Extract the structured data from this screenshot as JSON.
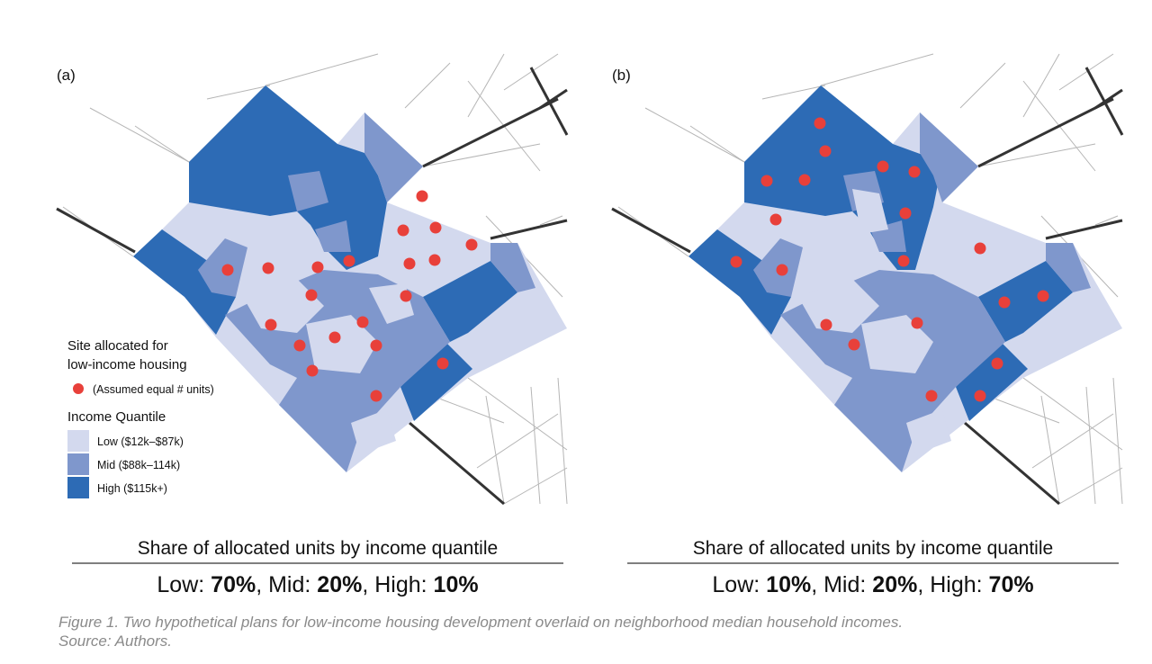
{
  "colors": {
    "low": "#d3d9ee",
    "mid": "#7f97cc",
    "high": "#2d6bb5",
    "site_dot": "#e8403a",
    "street": "#b5b5b5",
    "highway": "#333333"
  },
  "legend": {
    "site_title_line1": "Site allocated for",
    "site_title_line2": "low-income housing",
    "site_note": "(Assumed equal # units)",
    "quantile_title": "Income Quantile",
    "items": [
      {
        "key": "low",
        "label": "Low ($12k–$87k)"
      },
      {
        "key": "mid",
        "label": "Mid ($88k–114k)"
      },
      {
        "key": "high",
        "label": "High ($115k+)"
      }
    ]
  },
  "panels": [
    {
      "label": "(a)",
      "summary_title": "Share of allocated units by income quantile",
      "shares": {
        "low_label": "Low: ",
        "low": "70%",
        "mid_label": ", Mid: ",
        "mid": "20%",
        "high_label": ", High: ",
        "high": "10%"
      }
    },
    {
      "label": "(b)",
      "summary_title": "Share of allocated units by income quantile",
      "shares": {
        "low_label": "Low: ",
        "low": "10%",
        "mid_label": ", Mid: ",
        "mid": "20%",
        "high_label": ", High: ",
        "high": "70%"
      }
    }
  ],
  "caption": {
    "line1": "Figure 1.  Two hypothetical plans for low-income housing development overlaid on neighborhood median household incomes.",
    "line2": "Source: Authors."
  }
}
